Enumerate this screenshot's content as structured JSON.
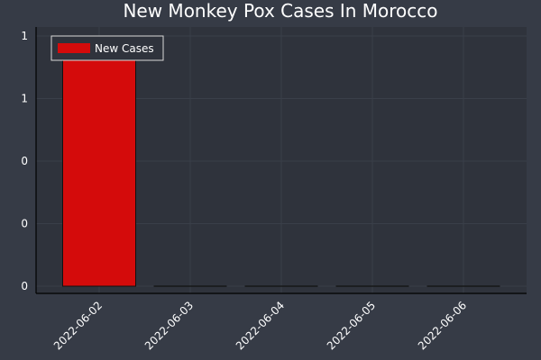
{
  "chart_data": {
    "type": "bar",
    "title": "New Monkey Pox Cases In Morocco",
    "categories": [
      "2022-06-02",
      "2022-06-03",
      "2022-06-04",
      "2022-06-05",
      "2022-06-06"
    ],
    "series": [
      {
        "name": "New Cases",
        "values": [
          1,
          0,
          0,
          0,
          0
        ]
      }
    ],
    "yticks": [
      0,
      0.25,
      0.5,
      0.75,
      1
    ],
    "ytick_labels": [
      "0",
      "0",
      "0",
      "1",
      "1"
    ],
    "ylim": [
      0,
      1
    ],
    "xlabel": "",
    "ylabel": "",
    "grid": true,
    "legend_position": "top-left"
  },
  "colors": {
    "background": "#363b46",
    "plot_background": "#2f333c",
    "bar": "#d40b0b",
    "text": "#ffffff",
    "grid": "#3a3f49"
  }
}
